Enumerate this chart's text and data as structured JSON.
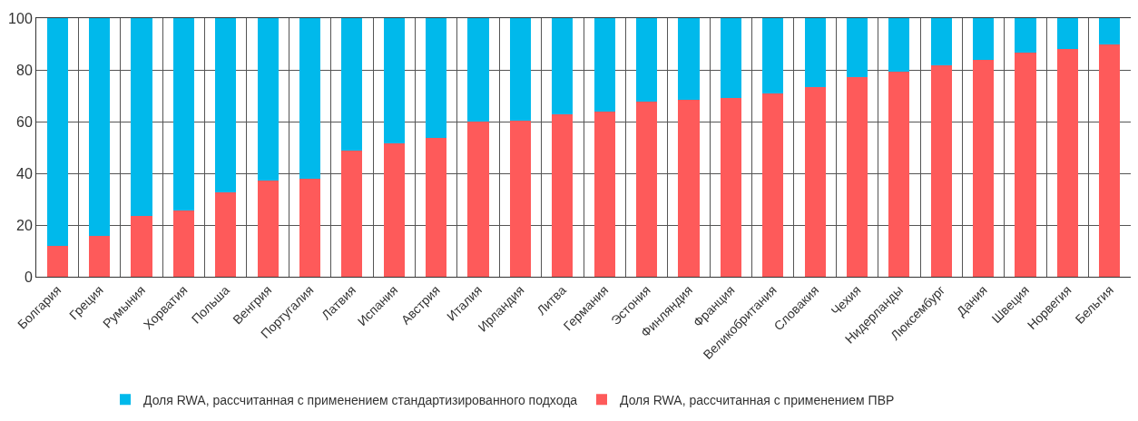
{
  "chart_data": {
    "type": "bar",
    "stacked": true,
    "categories": [
      "Болгария",
      "Греция",
      "Румыния",
      "Хорватия",
      "Польша",
      "Венгрия",
      "Португалия",
      "Латвия",
      "Испания",
      "Австрия",
      "Италия",
      "Ирландия",
      "Литва",
      "Германия",
      "Эстония",
      "Финляндия",
      "Франция",
      "Великобритания",
      "Словакия",
      "Чехия",
      "Нидерланды",
      "Люксембург",
      "Дания",
      "Швеция",
      "Норвегия",
      "Бельгия"
    ],
    "series": [
      {
        "name": "Доля RWA, рассчитанная с применением ПВР",
        "color": "#fe5a5a",
        "values": [
          12.1,
          15.9,
          23.4,
          25.5,
          32.6,
          37.3,
          37.9,
          48.8,
          51.7,
          53.7,
          60.1,
          60.5,
          62.8,
          63.9,
          67.7,
          68.4,
          69.1,
          70.8,
          73.3,
          77.2,
          79.2,
          81.8,
          83.8,
          86.7,
          88.0,
          89.8
        ]
      },
      {
        "name": "Доля RWA, рассчитанная с применением стандартизированного подхода",
        "color": "#00b9eb",
        "values": [
          87.9,
          84.1,
          76.6,
          74.5,
          67.4,
          62.7,
          62.1,
          51.2,
          48.3,
          46.3,
          39.9,
          39.5,
          37.2,
          36.1,
          32.3,
          31.6,
          30.9,
          29.2,
          26.7,
          22.8,
          20.8,
          18.2,
          16.2,
          13.3,
          12.0,
          10.2
        ]
      }
    ],
    "ylim": [
      0,
      100
    ],
    "yticks": [
      0,
      20,
      40,
      60,
      80,
      100
    ],
    "grid": true,
    "legend": "bottom"
  }
}
